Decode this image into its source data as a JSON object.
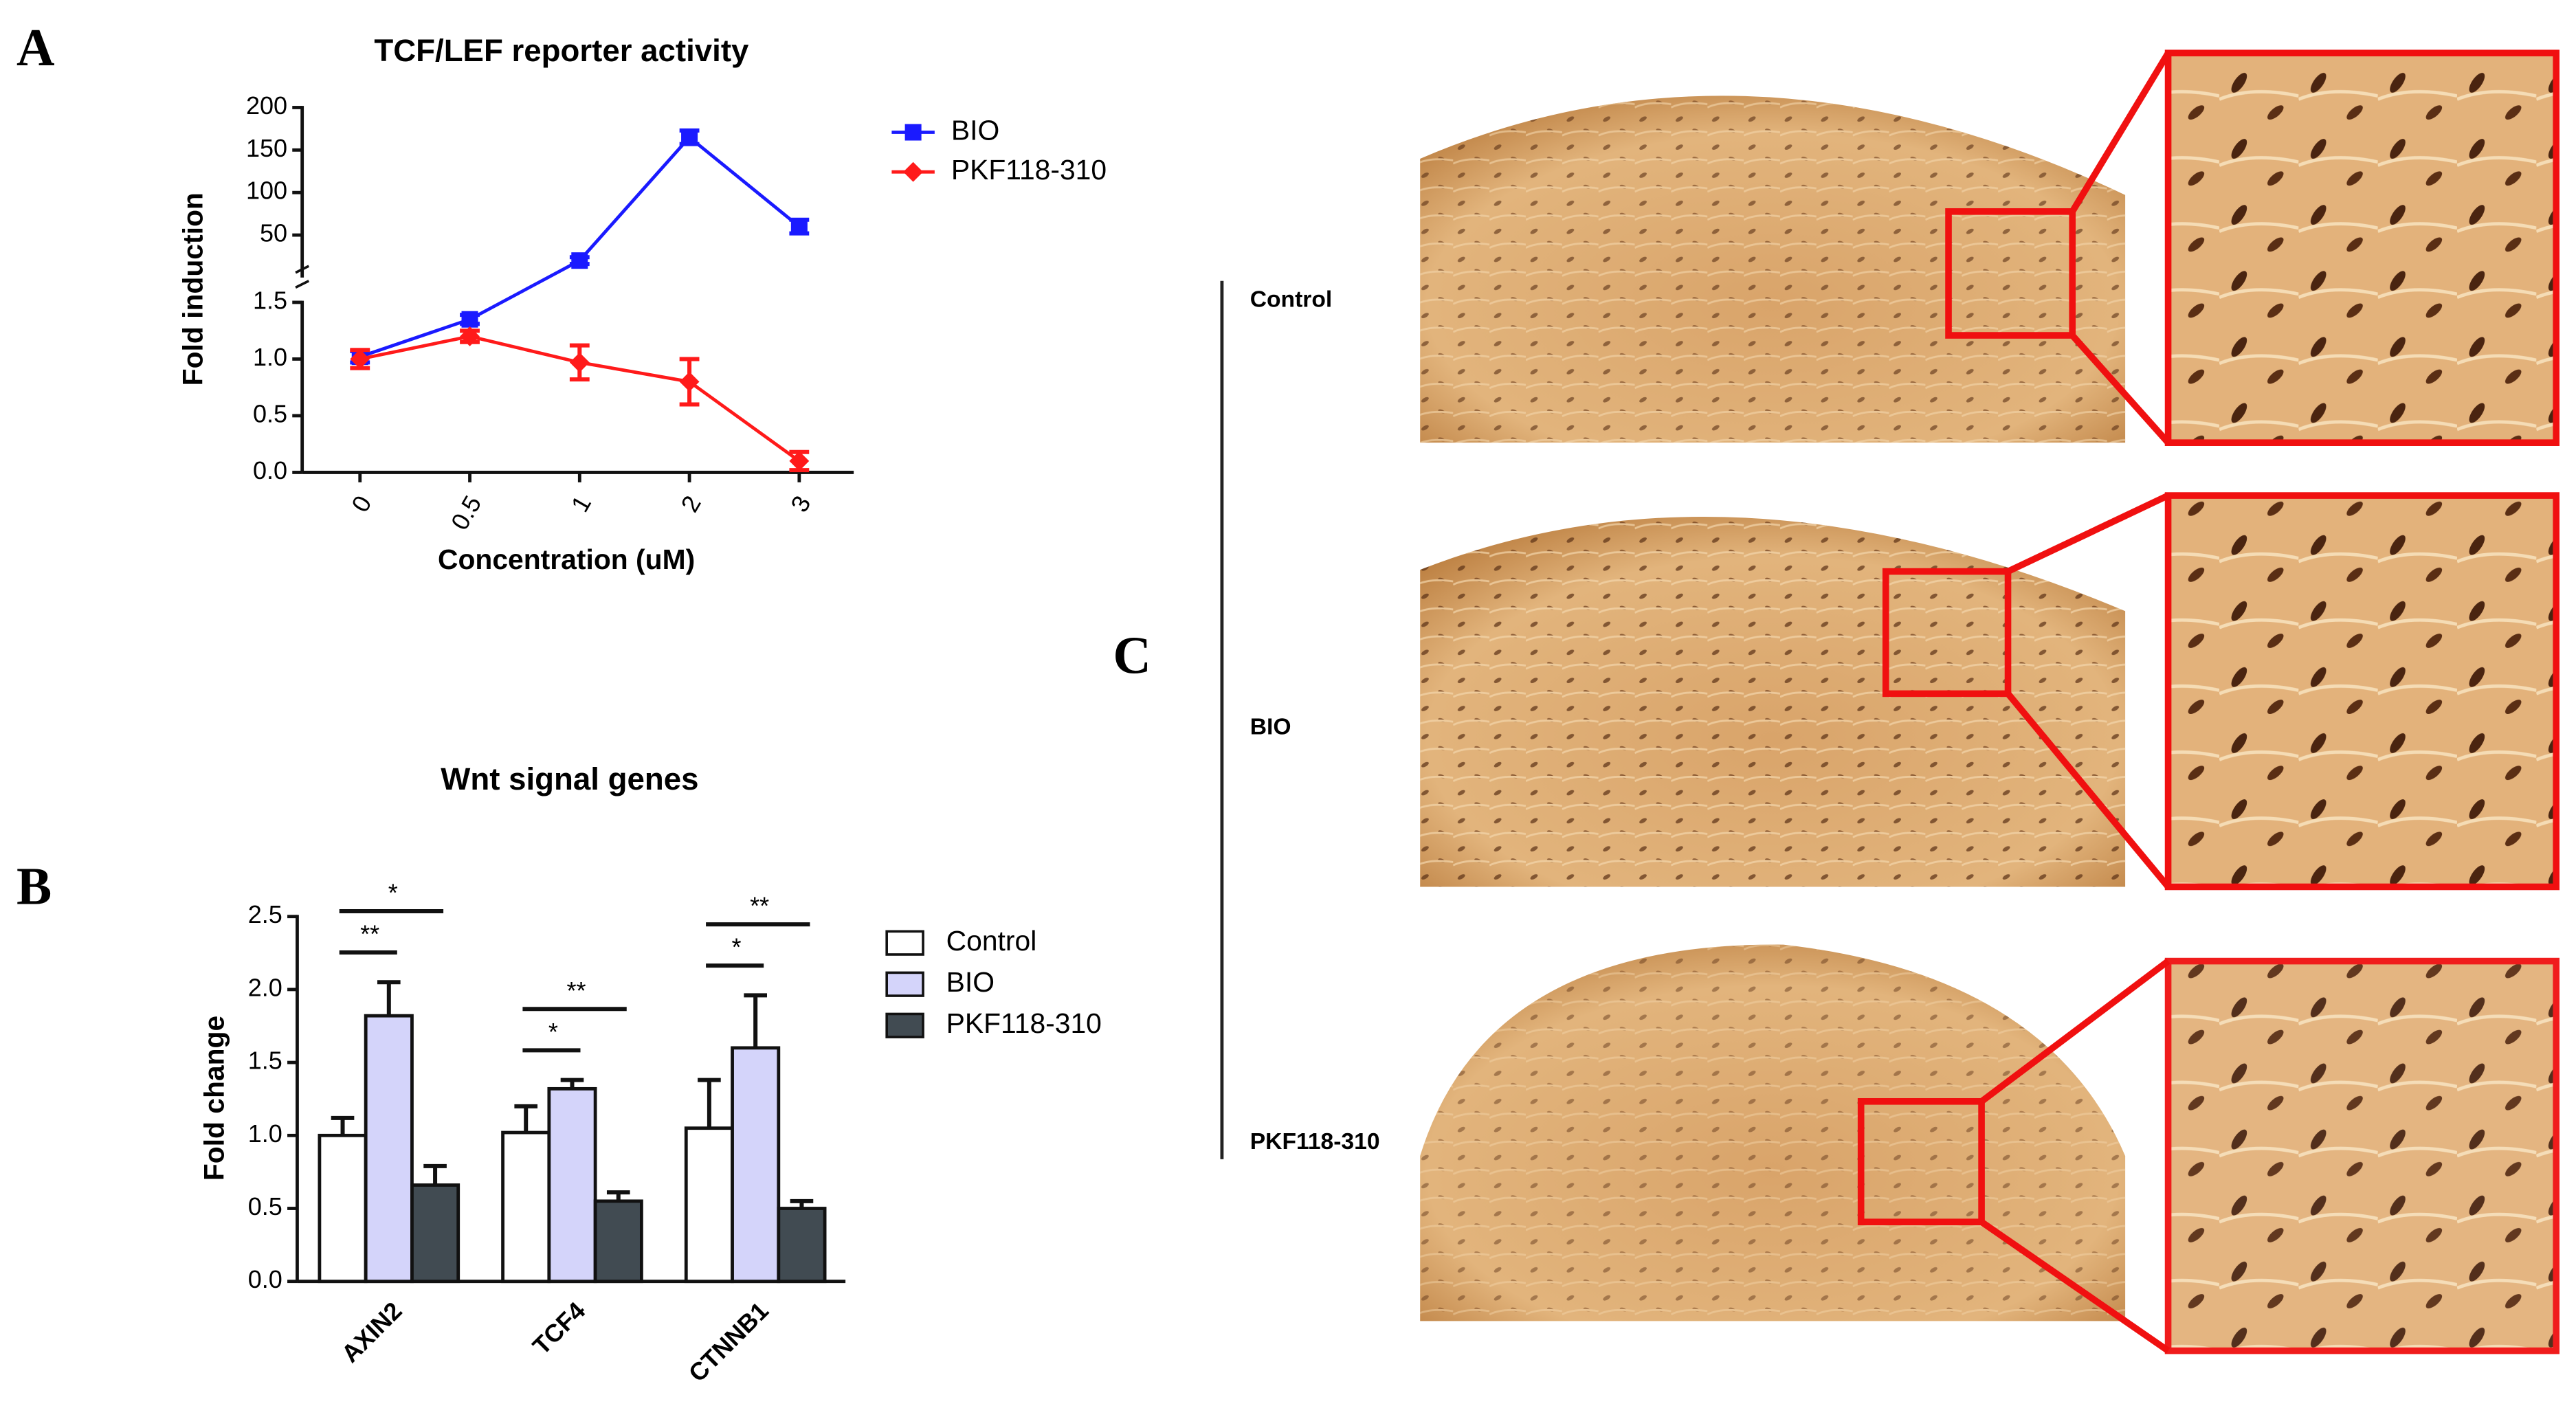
{
  "panels": [
    "A",
    "B",
    "C"
  ],
  "chart_data": [
    {
      "type": "line",
      "title": "TCF/LEF reporter activity",
      "x_label": "Concentration (uM)",
      "y_label": "Fold induction",
      "categories": [
        "0",
        "0.5",
        "1",
        "2",
        "3"
      ],
      "broken_axis": [
        {
          "ylim": [
            0,
            1.5
          ],
          "yticks": [
            {
              "value": 0,
              "label": "0.0"
            },
            {
              "value": 0.5,
              "label": "0.5"
            },
            {
              "value": 1,
              "label": "1.0"
            },
            {
              "value": 1.5,
              "label": "1.5"
            }
          ]
        },
        {
          "ylim": [
            0,
            200
          ],
          "yticks": [
            50,
            100,
            150,
            200
          ]
        }
      ],
      "series": [
        {
          "name": "BIO",
          "color": "#1a1aff",
          "marker": "asterisk",
          "values": [
            1.02,
            1.35,
            20,
            165,
            60
          ],
          "errors": [
            0.05,
            0.04,
            4,
            8,
            8
          ]
        },
        {
          "name": "PKF118-310",
          "color": "#ff1a1a",
          "marker": "diamond",
          "values": [
            1.0,
            1.2,
            0.97,
            0.8,
            0.1
          ],
          "errors": [
            0.08,
            0.05,
            0.15,
            0.2,
            0.08
          ]
        }
      ]
    },
    {
      "type": "bar",
      "title": "Wnt signal genes",
      "y_label": "Fold change",
      "categories": [
        "AXIN2",
        "TCF4",
        "CTNNB1"
      ],
      "ylim": [
        0,
        2.5
      ],
      "yticks": [
        {
          "value": 0,
          "label": "0.0"
        },
        {
          "value": 0.5,
          "label": "0.5"
        },
        {
          "value": 1,
          "label": "1.0"
        },
        {
          "value": 1.5,
          "label": "1.5"
        },
        {
          "value": 2,
          "label": "2.0"
        },
        {
          "value": 2.5,
          "label": "2.5"
        }
      ],
      "series": [
        {
          "name": "Control",
          "color": "#ffffff",
          "values": [
            1.0,
            1.02,
            1.05
          ],
          "errors": [
            0.12,
            0.18,
            0.33
          ]
        },
        {
          "name": "BIO",
          "color": "#d4d4fa",
          "values": [
            1.82,
            1.32,
            1.6
          ],
          "errors": [
            0.23,
            0.06,
            0.36
          ]
        },
        {
          "name": "PKF118-310",
          "color": "#414b52",
          "values": [
            0.66,
            0.55,
            0.5
          ],
          "errors": [
            0.13,
            0.06,
            0.05
          ]
        }
      ],
      "significance": [
        [
          "**",
          "*"
        ],
        [
          "*",
          "**"
        ],
        [
          "*",
          "**"
        ]
      ]
    }
  ],
  "micrographs": {
    "rows": [
      "Control",
      "BIO",
      "PKF118-310"
    ]
  }
}
